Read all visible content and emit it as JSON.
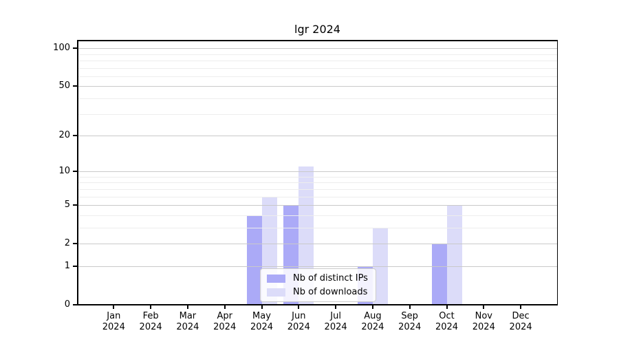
{
  "title": "lgr 2024",
  "chart_data": {
    "type": "bar",
    "title": "lgr 2024",
    "categories": [
      "Jan",
      "Feb",
      "Mar",
      "Apr",
      "May",
      "Jun",
      "Jul",
      "Aug",
      "Sep",
      "Oct",
      "Nov",
      "Dec"
    ],
    "year_label": "2024",
    "series": [
      {
        "name": "Nb of distinct IPs",
        "color": "#abaaf7",
        "values": [
          0,
          0,
          0,
          0,
          4,
          5,
          0,
          1,
          0,
          2,
          0,
          0
        ]
      },
      {
        "name": "Nb of downloads",
        "color": "#dcdcf9",
        "values": [
          0,
          0,
          0,
          0,
          6,
          11,
          0,
          3,
          0,
          5,
          0,
          0
        ]
      }
    ],
    "y_axis": {
      "scale": "log1p",
      "ticks": [
        0,
        1,
        2,
        5,
        10,
        20,
        50,
        100
      ],
      "minor_ticks": [
        3,
        4,
        6,
        7,
        8,
        9,
        30,
        40,
        60,
        70,
        80,
        90
      ],
      "range": [
        0,
        115
      ]
    },
    "grid": true,
    "legend_position": "lower center"
  }
}
